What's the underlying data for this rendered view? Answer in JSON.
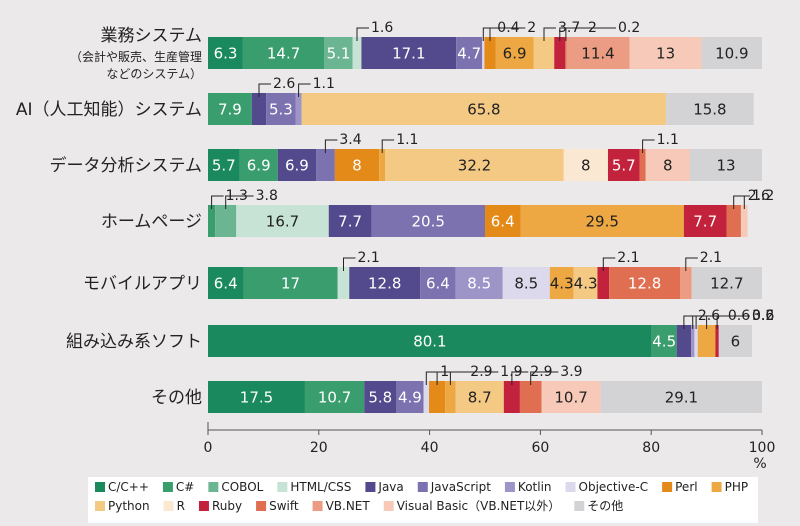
{
  "chart_data": {
    "type": "bar",
    "orientation": "horizontal",
    "stacked": true,
    "categories": [
      {
        "label": "業務システム",
        "sublabel": [
          "（会計や販売、生産管理",
          "などのシステム）"
        ]
      },
      {
        "label": "AI（人工知能）システム",
        "sublabel": []
      },
      {
        "label": "データ分析システム",
        "sublabel": []
      },
      {
        "label": "ホームページ",
        "sublabel": []
      },
      {
        "label": "モバイルアプリ",
        "sublabel": []
      },
      {
        "label": "組み込み系ソフト",
        "sublabel": []
      },
      {
        "label": "その他",
        "sublabel": []
      }
    ],
    "series": [
      {
        "name": "C/C++",
        "color": "#1a8a5e",
        "values": [
          6.3,
          0,
          5.7,
          0,
          6.4,
          80.1,
          17.5
        ]
      },
      {
        "name": "C#",
        "color": "#3a9d6e",
        "values": [
          14.7,
          7.9,
          6.9,
          1.3,
          17,
          4.5,
          10.7
        ]
      },
      {
        "name": "COBOL",
        "color": "#6bb593",
        "values": [
          5.1,
          0,
          0,
          3.8,
          0,
          0,
          0
        ]
      },
      {
        "name": "HTML/CSS",
        "color": "#c6e3d5",
        "values": [
          1.6,
          0,
          0,
          16.7,
          2.1,
          0,
          0
        ]
      },
      {
        "name": "Java",
        "color": "#524a8c",
        "values": [
          17.1,
          2.6,
          6.9,
          7.7,
          12.8,
          2.6,
          5.8
        ]
      },
      {
        "name": "JavaScript",
        "color": "#7c72b0",
        "values": [
          4.7,
          5.3,
          3.4,
          20.5,
          6.4,
          0,
          4.9
        ]
      },
      {
        "name": "Kotlin",
        "color": "#9d95c8",
        "values": [
          0,
          1.1,
          0,
          0,
          8.5,
          0.6,
          0
        ]
      },
      {
        "name": "Objective-C",
        "color": "#dcd9ec",
        "values": [
          0.4,
          0,
          0,
          0,
          8.5,
          0.6,
          1
        ]
      },
      {
        "name": "Perl",
        "color": "#e48a18",
        "values": [
          2,
          0,
          8,
          6.4,
          0,
          0,
          2.9
        ]
      },
      {
        "name": "PHP",
        "color": "#eda843",
        "values": [
          6.9,
          0,
          1.1,
          29.5,
          4.3,
          3.2,
          1.9
        ]
      },
      {
        "name": "Python",
        "color": "#f3c984",
        "values": [
          3.7,
          65.8,
          32.2,
          0,
          4.3,
          0,
          8.7
        ]
      },
      {
        "name": "R",
        "color": "#fbe8d2",
        "values": [
          0,
          0,
          8,
          0,
          0,
          0,
          0
        ]
      },
      {
        "name": "Ruby",
        "color": "#c3223d",
        "values": [
          2,
          0,
          5.7,
          7.7,
          2.1,
          0.6,
          2.9
        ]
      },
      {
        "name": "Swift",
        "color": "#e06f52",
        "values": [
          0.2,
          0,
          1.1,
          2.6,
          12.8,
          0,
          3.9
        ]
      },
      {
        "name": "VB.NET",
        "color": "#ec9c83",
        "values": [
          11.4,
          0,
          0,
          0,
          2.1,
          0,
          0
        ]
      },
      {
        "name": "Visual Basic（VB.NET以外）",
        "color": "#f6c9b9",
        "values": [
          13,
          0,
          8,
          1.2,
          0,
          0,
          10.7
        ]
      },
      {
        "name": "その他",
        "color": "#d3d3d6",
        "values": [
          10.9,
          15.8,
          13,
          0,
          12.7,
          6,
          29.1
        ]
      }
    ],
    "value_labels": [
      [
        6.3,
        14.7,
        5.1,
        1.6,
        17.1,
        4.7,
        0.4,
        2,
        6.9,
        3.7,
        2,
        0.2,
        11.4,
        13,
        10.9
      ],
      [
        7.9,
        2.6,
        5.3,
        1.1,
        65.8,
        15.8
      ],
      [
        5.7,
        6.9,
        6.9,
        3.4,
        8,
        1.1,
        32.2,
        8,
        5.7,
        1.1,
        8,
        13
      ],
      [
        1.3,
        3.8,
        16.7,
        7.7,
        20.5,
        6.4,
        29.5,
        7.7,
        2.6,
        1.2
      ],
      [
        6.4,
        17,
        2.1,
        12.8,
        6.4,
        8.5,
        8.5,
        4.3,
        4.3,
        2.1,
        12.8,
        2.1,
        12.7
      ],
      [
        80.1,
        4.5,
        2.6,
        0.6,
        0.6,
        3.2,
        0.6,
        6
      ],
      [
        17.5,
        10.7,
        5.8,
        4.9,
        1,
        2.9,
        1.9,
        8.7,
        2.9,
        3.9,
        10.7,
        29.1
      ]
    ],
    "xlim": [
      0,
      100
    ],
    "xticks": [
      0,
      20,
      40,
      60,
      80,
      100
    ],
    "xunit": "%",
    "legend_position": "bottom",
    "grid": false
  }
}
